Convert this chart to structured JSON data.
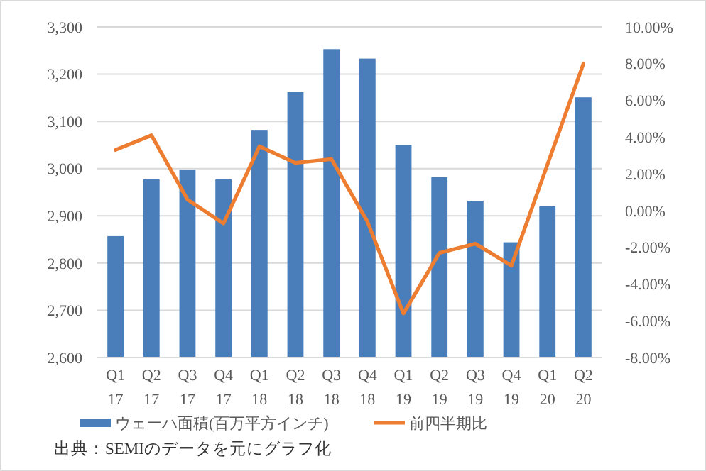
{
  "chart_data": {
    "type": "bar",
    "categories": [
      "Q1 17",
      "Q2 17",
      "Q3 17",
      "Q4 17",
      "Q1 18",
      "Q2 18",
      "Q3 18",
      "Q4 18",
      "Q1 19",
      "Q2 19",
      "Q3 19",
      "Q4 19",
      "Q1 20",
      "Q2 20"
    ],
    "series": [
      {
        "name": "ウェーハ面積(百万平方インチ)",
        "color": "#4a7ebb",
        "values": [
          2857,
          2977,
          2997,
          2977,
          3082,
          3162,
          3253,
          3233,
          3050,
          2982,
          2932,
          2844,
          2920,
          3151
        ]
      },
      {
        "name": "前四半期比",
        "color": "#ed7d31",
        "type": "line",
        "axis": "y2",
        "values": [
          3.3,
          4.1,
          0.6,
          -0.7,
          3.5,
          2.6,
          2.8,
          -0.6,
          -5.6,
          -2.3,
          -1.8,
          -3.0,
          2.5,
          8.0
        ]
      }
    ],
    "ylim": [
      2600,
      3300
    ],
    "yticks": [
      {
        "value": 2600,
        "label": "2,600"
      },
      {
        "value": 2700,
        "label": "2,700"
      },
      {
        "value": 2800,
        "label": "2,800"
      },
      {
        "value": 2900,
        "label": "2,900"
      },
      {
        "value": 3000,
        "label": "3,000"
      },
      {
        "value": 3100,
        "label": "3,100"
      },
      {
        "value": 3200,
        "label": "3,200"
      },
      {
        "value": 3300,
        "label": "3,300"
      }
    ],
    "y2lim": [
      -8,
      10
    ],
    "y2ticks": [
      {
        "value": -8,
        "label": "-8.00%"
      },
      {
        "value": -6,
        "label": "-6.00%"
      },
      {
        "value": -4,
        "label": "-4.00%"
      },
      {
        "value": -2,
        "label": "-2.00%"
      },
      {
        "value": 0,
        "label": "0.00%"
      },
      {
        "value": 2,
        "label": "2.00%"
      },
      {
        "value": 4,
        "label": "4.00%"
      },
      {
        "value": 6,
        "label": "6.00%"
      },
      {
        "value": 8,
        "label": "8.00%"
      },
      {
        "value": 10,
        "label": "10.00%"
      }
    ],
    "grid": "y",
    "legend": "bottom",
    "marker": "none",
    "line_style": "solid",
    "annotations": [
      "出典：SEMIのデータを元にグラフ化"
    ]
  }
}
